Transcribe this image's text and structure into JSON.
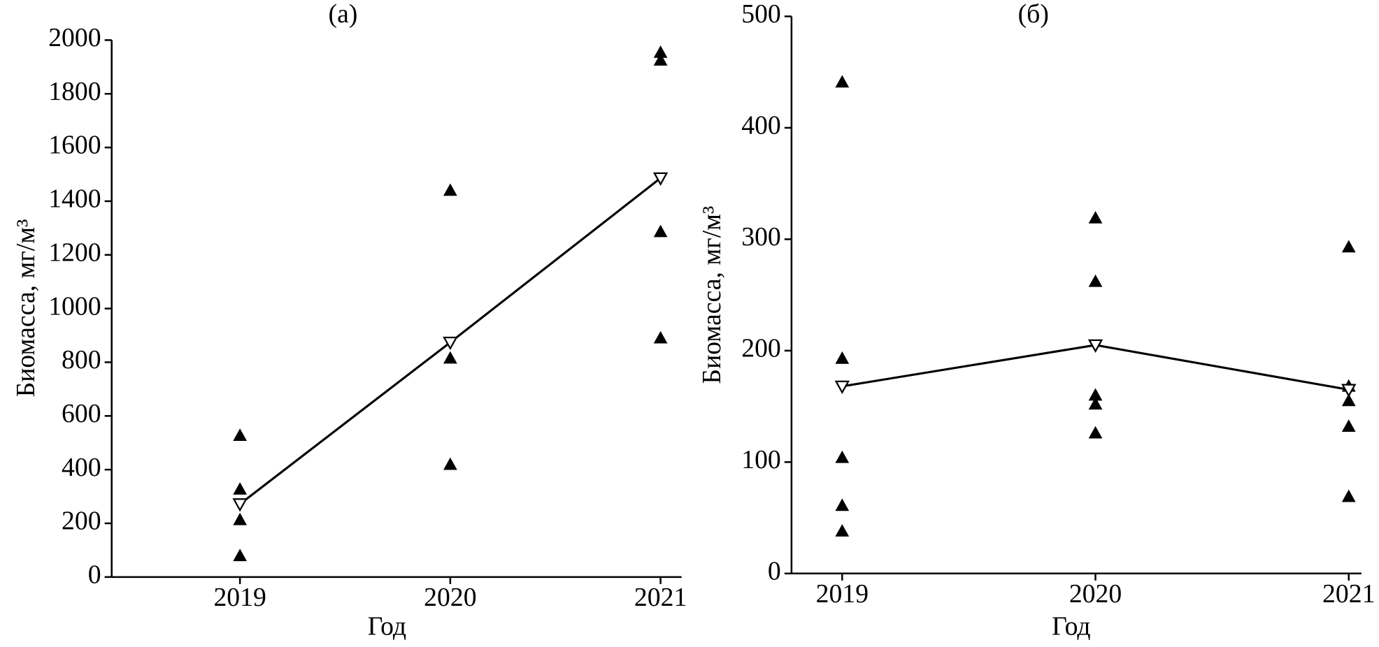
{
  "chart_data": [
    {
      "type": "scatter",
      "title": "(а)",
      "xlabel": "Год",
      "ylabel": "Биомасса, мг/м³",
      "xlim": [
        2018.39,
        2021.1
      ],
      "xticks": [
        2019,
        2020,
        2021
      ],
      "ylim": [
        0,
        2000
      ],
      "yticks": [
        0,
        200,
        400,
        600,
        800,
        1000,
        1200,
        1400,
        1600,
        1800,
        2000
      ],
      "series": [
        {
          "marker": "triangle-up",
          "color": "#000000",
          "x": [
            2019,
            2019,
            2019,
            2019,
            2020,
            2020,
            2020,
            2021,
            2021,
            2021,
            2021
          ],
          "values": [
            527,
            327,
            213,
            79,
            1440,
            815,
            419,
            1954,
            1925,
            1286,
            890
          ]
        },
        {
          "marker": "triangle-down-open",
          "line": true,
          "color": "#000000",
          "x": [
            2019,
            2020,
            2021
          ],
          "values": [
            272,
            874,
            1486
          ]
        }
      ]
    },
    {
      "type": "scatter",
      "title": "(б)",
      "xlabel": "Год",
      "ylabel": "Биомасса, мг/м³",
      "xlim": [
        2018.8,
        2021.05
      ],
      "xticks": [
        2019,
        2020,
        2021
      ],
      "ylim": [
        0,
        500
      ],
      "yticks": [
        0,
        100,
        200,
        300,
        400,
        500
      ],
      "series": [
        {
          "marker": "triangle-up",
          "color": "#000000",
          "x": [
            2019,
            2019,
            2019,
            2019,
            2019,
            2020,
            2020,
            2020,
            2020,
            2020,
            2021,
            2021,
            2021,
            2021,
            2021
          ],
          "values": [
            441,
            193,
            104,
            61,
            38,
            319,
            262,
            160,
            152,
            126,
            293,
            168,
            155,
            132,
            69
          ]
        },
        {
          "marker": "triangle-down-open",
          "line": true,
          "color": "#000000",
          "x": [
            2019,
            2020,
            2021
          ],
          "values": [
            168,
            205,
            165
          ]
        }
      ]
    }
  ]
}
